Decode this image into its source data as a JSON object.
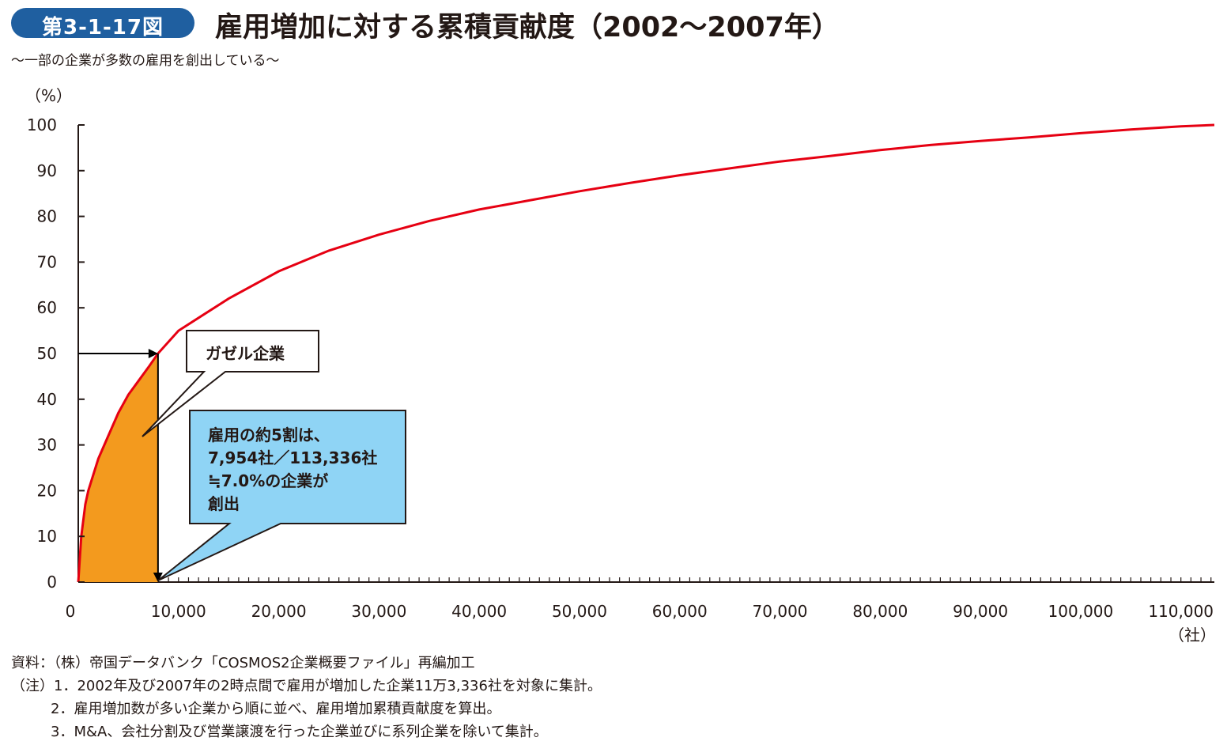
{
  "figure": {
    "badge": "第3-1-17図",
    "title": "雇用増加に対する累積貢献度（2002～2007年）",
    "subtitle": "～一部の企業が多数の雇用を創出している～"
  },
  "chart_data": {
    "type": "line",
    "title": "雇用増加に対する累積貢献度（2002～2007年）",
    "ylabel": "（%）",
    "xlabel": "（社）",
    "xlim": [
      0,
      113336
    ],
    "ylim": [
      0,
      100
    ],
    "x_ticks": [
      0,
      10000,
      20000,
      30000,
      40000,
      50000,
      60000,
      70000,
      80000,
      90000,
      100000,
      110000
    ],
    "x_tick_labels": [
      "0",
      "10,000",
      "20,000",
      "30,000",
      "40,000",
      "50,000",
      "60,000",
      "70,000",
      "80,000",
      "90,000",
      "100,000",
      "110,000"
    ],
    "y_ticks": [
      0,
      10,
      20,
      30,
      40,
      50,
      60,
      70,
      80,
      90,
      100
    ],
    "y_tick_labels": [
      "0",
      "10",
      "20",
      "30",
      "40",
      "50",
      "60",
      "70",
      "80",
      "90",
      "100"
    ],
    "series": [
      {
        "color": "#e60012",
        "x": [
          0,
          300,
          700,
          1000,
          2000,
          3000,
          4000,
          5000,
          6000,
          7000,
          7954,
          10000,
          15000,
          20000,
          25000,
          30000,
          35000,
          40000,
          45000,
          50000,
          55000,
          60000,
          65000,
          70000,
          75000,
          80000,
          85000,
          90000,
          95000,
          100000,
          105000,
          110000,
          113336
        ],
        "y": [
          0,
          10,
          17,
          20,
          27,
          32,
          37,
          41,
          44,
          47,
          50,
          55,
          62,
          68,
          72.5,
          76,
          79,
          81.5,
          83.5,
          85.5,
          87.3,
          89,
          90.5,
          92,
          93.2,
          94.5,
          95.6,
          96.5,
          97.3,
          98.2,
          99,
          99.7,
          100
        ]
      }
    ],
    "highlight": {
      "x_max": 7954,
      "y_at_x": 50,
      "fill": "#f39a1e"
    },
    "annotations": {
      "label": "ガゼル企業",
      "note_lines": [
        "雇用の約5割は、",
        "7,954社／113,336社",
        "≒7.0%の企業が",
        "創出"
      ],
      "note_fill": "#8fd4f5"
    }
  },
  "notes": {
    "source": "資料：（株）帝国データバンク「COSMOS2企業概要ファイル」再編加工",
    "note1": "（注）1．2002年及び2007年の2時点間で雇用が増加した企業11万3,336社を対象に集計。",
    "note2": "2．雇用増加数が多い企業から順に並べ、雇用増加累積貢献度を算出。",
    "note3": "3．M&A、会社分割及び営業譲渡を行った企業並びに系列企業を除いて集計。"
  }
}
